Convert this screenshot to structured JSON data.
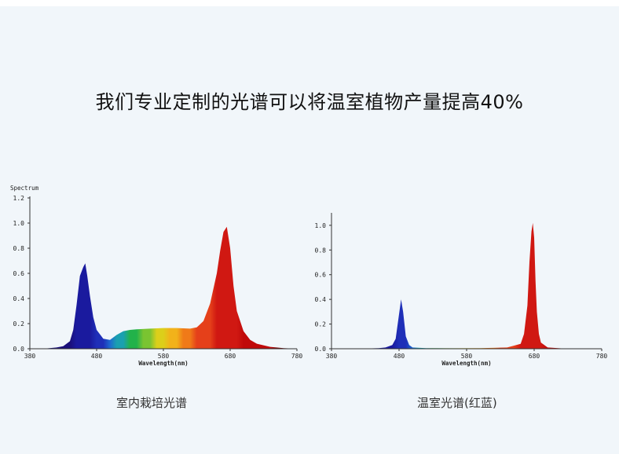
{
  "headline": "我们专业定制的光谱可以将温室植物产量提高40%",
  "colors": {
    "background": "#f1f6fa",
    "axis": "#333333",
    "blue": "#1a1a9e",
    "red": "#c40000"
  },
  "chart_data": [
    {
      "type": "area",
      "caption": "室内栽培光谱",
      "ylabel": "Spectrum",
      "xlabel": "Wavelength(nm)",
      "xlim": [
        380,
        780
      ],
      "ylim": [
        0,
        1.2
      ],
      "xticks": [
        380,
        480,
        580,
        680,
        780
      ],
      "yticks": [
        "0.0",
        "0.2",
        "0.4",
        "0.6",
        "0.8",
        "1.0",
        "1.2"
      ],
      "x": [
        380,
        400,
        420,
        430,
        440,
        445,
        450,
        455,
        460,
        463,
        466,
        470,
        475,
        480,
        490,
        500,
        510,
        520,
        530,
        540,
        560,
        580,
        600,
        620,
        630,
        640,
        650,
        660,
        665,
        670,
        675,
        680,
        685,
        690,
        700,
        710,
        720,
        740,
        760,
        780
      ],
      "y": [
        0.0,
        0.0,
        0.01,
        0.02,
        0.06,
        0.15,
        0.35,
        0.58,
        0.65,
        0.68,
        0.58,
        0.42,
        0.25,
        0.15,
        0.08,
        0.07,
        0.11,
        0.14,
        0.15,
        0.155,
        0.16,
        0.165,
        0.165,
        0.16,
        0.17,
        0.22,
        0.36,
        0.6,
        0.78,
        0.93,
        0.97,
        0.8,
        0.5,
        0.3,
        0.14,
        0.07,
        0.04,
        0.015,
        0.005,
        0.0
      ]
    },
    {
      "type": "area",
      "caption": "温室光谱(红蓝)",
      "xlabel": "Wavelength(nm)",
      "xlim": [
        380,
        780
      ],
      "ylim": [
        0,
        1.05
      ],
      "xticks": [
        380,
        480,
        580,
        680,
        780
      ],
      "yticks": [
        "0.0",
        "0.2",
        "0.4",
        "0.6",
        "0.8",
        "1.0"
      ],
      "x": [
        380,
        420,
        450,
        460,
        470,
        475,
        480,
        483,
        486,
        490,
        495,
        500,
        520,
        560,
        600,
        640,
        660,
        665,
        670,
        673,
        676,
        678,
        680,
        682,
        684,
        687,
        690,
        700,
        720,
        780
      ],
      "y": [
        0.0,
        0.0,
        0.005,
        0.01,
        0.03,
        0.08,
        0.28,
        0.4,
        0.3,
        0.1,
        0.03,
        0.01,
        0.005,
        0.004,
        0.005,
        0.01,
        0.04,
        0.12,
        0.35,
        0.7,
        0.95,
        1.02,
        0.9,
        0.55,
        0.3,
        0.12,
        0.05,
        0.01,
        0.003,
        0.0
      ]
    }
  ]
}
